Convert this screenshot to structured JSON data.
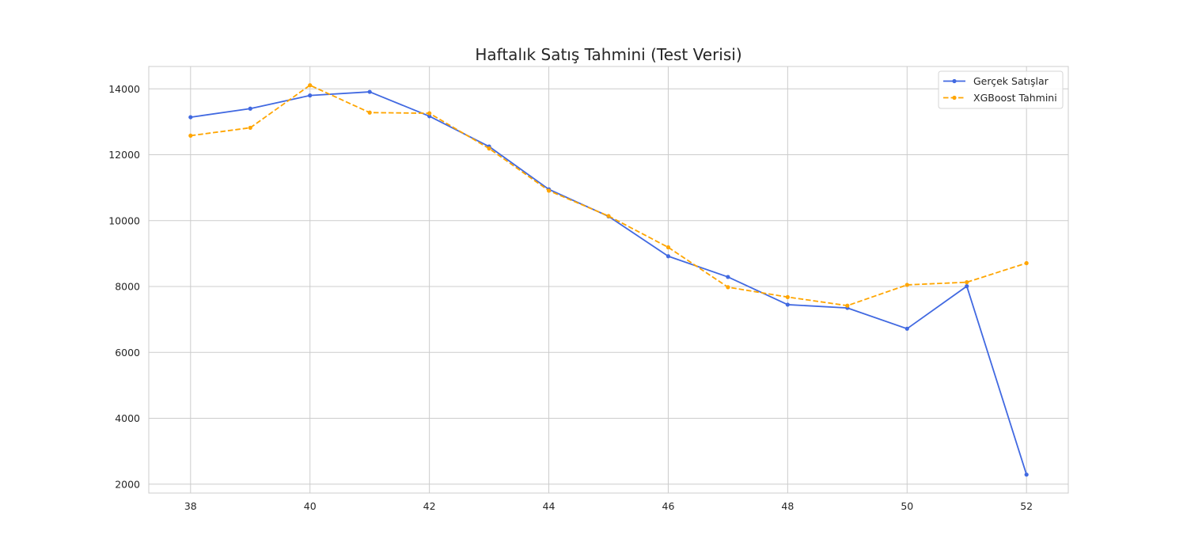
{
  "chart_data": {
    "type": "line",
    "title": "Haftalık Satış Tahmini (Test Verisi)",
    "xlabel": "",
    "ylabel": "",
    "x": [
      38,
      39,
      40,
      41,
      42,
      43,
      44,
      45,
      46,
      47,
      48,
      49,
      50,
      51,
      52
    ],
    "xlim": [
      37.3,
      52.7
    ],
    "ylim": [
      1730,
      14680
    ],
    "x_ticks": [
      38,
      40,
      42,
      44,
      46,
      48,
      50,
      52
    ],
    "y_ticks": [
      2000,
      4000,
      6000,
      8000,
      10000,
      12000,
      14000
    ],
    "grid": true,
    "legend_position": "top-right",
    "series": [
      {
        "name": "Gerçek Satışlar",
        "color": "#4169e1",
        "line_style": "solid",
        "marker": "circle",
        "values": [
          13140,
          13400,
          13800,
          13910,
          13170,
          12250,
          10950,
          10130,
          8920,
          8290,
          7450,
          7350,
          6720,
          8010,
          2290
        ]
      },
      {
        "name": "XGBoost Tahmini",
        "color": "#ffa500",
        "line_style": "dashed",
        "marker": "circle",
        "values": [
          12580,
          12820,
          14110,
          13280,
          13260,
          12190,
          10910,
          10140,
          9190,
          7980,
          7680,
          7420,
          8050,
          8130,
          8710
        ]
      }
    ]
  }
}
